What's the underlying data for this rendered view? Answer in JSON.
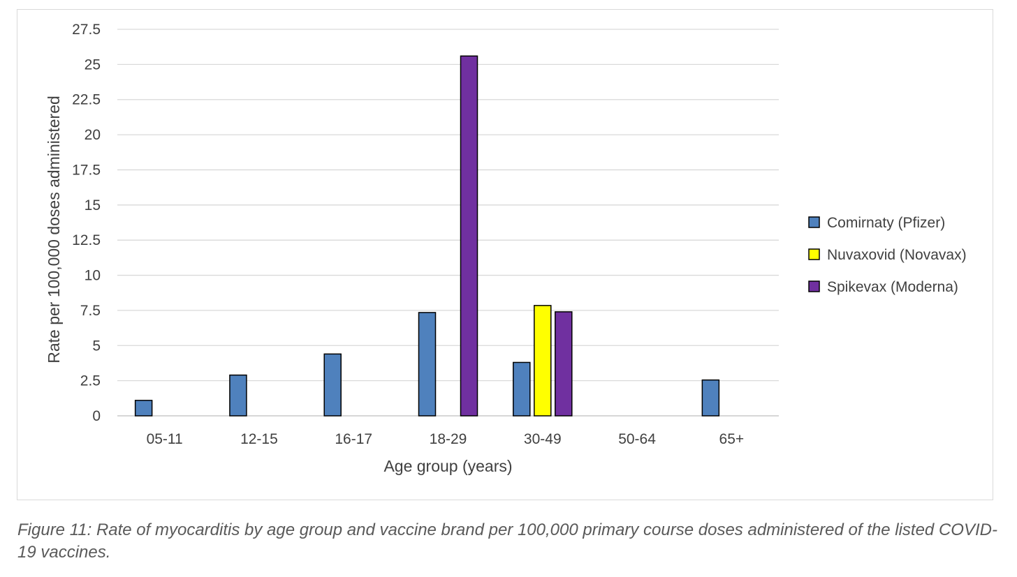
{
  "caption": "Figure 11: Rate of myocarditis by age group and vaccine brand per 100,000 primary course doses administered of the listed COVID-19 vaccines.",
  "chart_data": {
    "type": "bar",
    "title": "",
    "xlabel": "Age group (years)",
    "ylabel": "Rate  per 100,000 doses administered",
    "ylim": [
      0,
      27.5
    ],
    "yticks": [
      "0",
      "2.5",
      "5",
      "7.5",
      "10",
      "12.5",
      "15",
      "17.5",
      "20",
      "22.5",
      "25",
      "27.5"
    ],
    "grid": true,
    "legend_position": "right",
    "categories": [
      "05-11",
      "12-15",
      "16-17",
      "18-29",
      "30-49",
      "50-64",
      "65+"
    ],
    "series": [
      {
        "name": "Comirnaty (Pfizer)",
        "color": "#4f81bd",
        "values": [
          1.1,
          2.9,
          4.4,
          7.35,
          3.8,
          null,
          2.55
        ]
      },
      {
        "name": "Nuvaxovid (Novavax)",
        "color": "#ffff00",
        "values": [
          null,
          null,
          null,
          null,
          7.85,
          null,
          null
        ]
      },
      {
        "name": "Spikevax (Moderna)",
        "color": "#7030a0",
        "values": [
          null,
          null,
          null,
          25.6,
          7.4,
          null,
          null
        ]
      }
    ]
  }
}
